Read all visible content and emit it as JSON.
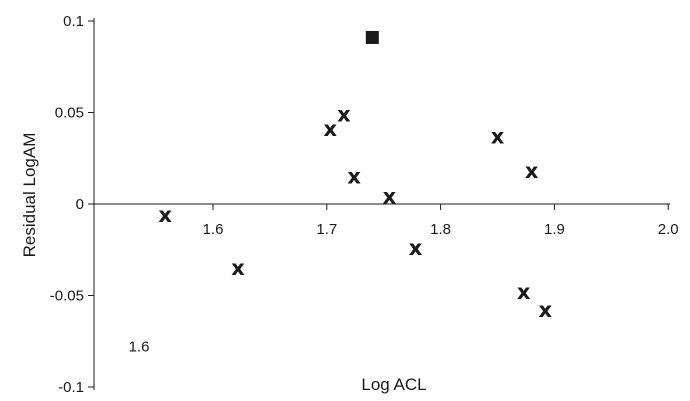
{
  "chart_data": {
    "type": "scatter",
    "title": "",
    "xlabel": "Log ACL",
    "ylabel": "Residual LogAM",
    "xlim": [
      1.5,
      2.0
    ],
    "ylim": [
      -0.1,
      0.1
    ],
    "x_ticks": [
      "1.6",
      "1.7",
      "1.8",
      "1.9",
      "2.0"
    ],
    "y_ticks": [
      "0.1",
      "0.05",
      "0",
      "-0.05",
      "-0.1"
    ],
    "x_tick_values": [
      1.6,
      1.7,
      1.8,
      1.9,
      2.0
    ],
    "y_tick_values": [
      0.1,
      0.05,
      0,
      -0.05,
      -0.1
    ],
    "grid": false,
    "annotations": [
      {
        "text": "1.6",
        "x": 1.535,
        "y": -0.078
      }
    ],
    "series": [
      {
        "marker": "x",
        "color": "#1a1a1a",
        "points": [
          {
            "x": 1.558,
            "y": -0.006
          },
          {
            "x": 1.622,
            "y": -0.035
          },
          {
            "x": 1.703,
            "y": 0.041
          },
          {
            "x": 1.715,
            "y": 0.049
          },
          {
            "x": 1.724,
            "y": 0.015
          },
          {
            "x": 1.755,
            "y": 0.004
          },
          {
            "x": 1.778,
            "y": -0.024
          },
          {
            "x": 1.85,
            "y": 0.037
          },
          {
            "x": 1.88,
            "y": 0.018
          },
          {
            "x": 1.873,
            "y": -0.048
          },
          {
            "x": 1.892,
            "y": -0.058
          }
        ]
      },
      {
        "marker": "square",
        "color": "#1a1a1a",
        "points": [
          {
            "x": 1.74,
            "y": 0.091
          }
        ]
      }
    ]
  }
}
